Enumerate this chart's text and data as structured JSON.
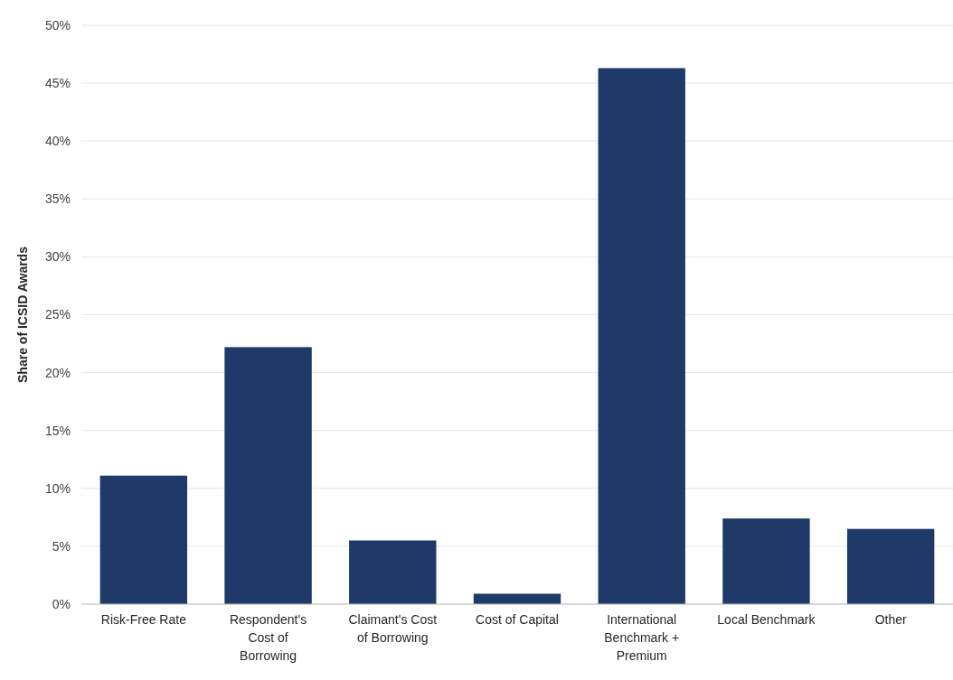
{
  "chart_data": {
    "type": "bar",
    "ylabel": "Share of ICSID Awards",
    "categories": [
      "Risk-Free Rate",
      "Respondent's Cost of Borrowing",
      "Claimant's Cost of Borrowing",
      "Cost of Capital",
      "International Benchmark + Premium",
      "Local Benchmark",
      "Other"
    ],
    "values": [
      11.1,
      22.2,
      5.5,
      0.9,
      46.3,
      7.4,
      6.5
    ],
    "color": "#1f3a68",
    "ylim": [
      0,
      50
    ],
    "yticks": [
      {
        "value": 0,
        "label": "0%"
      },
      {
        "value": 5,
        "label": "5%"
      },
      {
        "value": 10,
        "label": "10%"
      },
      {
        "value": 15,
        "label": "15%"
      },
      {
        "value": 20,
        "label": "20%"
      },
      {
        "value": 25,
        "label": "25%"
      },
      {
        "value": 30,
        "label": "30%"
      },
      {
        "value": 35,
        "label": "35%"
      },
      {
        "value": 40,
        "label": "40%"
      },
      {
        "value": 45,
        "label": "45%"
      },
      {
        "value": 50,
        "label": "50%"
      }
    ],
    "grid": "y"
  }
}
